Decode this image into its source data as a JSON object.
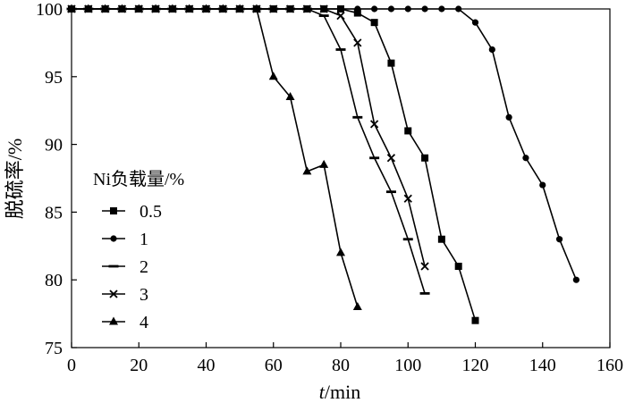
{
  "chart_data": {
    "type": "line",
    "xlabel_italic": "t",
    "xlabel_unit": "/min",
    "ylabel": "脱硫率/%",
    "xlim": [
      0,
      160
    ],
    "ylim": [
      75,
      100
    ],
    "xticks": [
      0,
      20,
      40,
      60,
      80,
      100,
      120,
      140,
      160
    ],
    "yticks": [
      75,
      80,
      85,
      90,
      95,
      100
    ],
    "grid": false,
    "legend_position": "left",
    "legend_title": "Ni负载量/%",
    "series": [
      {
        "name": "0.5",
        "marker": "square",
        "x": [
          0,
          5,
          10,
          15,
          20,
          25,
          30,
          35,
          40,
          45,
          50,
          55,
          60,
          65,
          70,
          75,
          80,
          85,
          90,
          95,
          100,
          105,
          110,
          115,
          120
        ],
        "y": [
          100,
          100,
          100,
          100,
          100,
          100,
          100,
          100,
          100,
          100,
          100,
          100,
          100,
          100,
          100,
          100,
          100,
          99.7,
          99,
          96,
          91,
          89,
          83,
          81,
          77
        ]
      },
      {
        "name": "1",
        "marker": "circle",
        "x": [
          0,
          5,
          10,
          15,
          20,
          25,
          30,
          35,
          40,
          45,
          50,
          55,
          60,
          65,
          70,
          75,
          80,
          85,
          90,
          95,
          100,
          105,
          110,
          115,
          120,
          125,
          130,
          135,
          140,
          145,
          150
        ],
        "y": [
          100,
          100,
          100,
          100,
          100,
          100,
          100,
          100,
          100,
          100,
          100,
          100,
          100,
          100,
          100,
          100,
          100,
          100,
          100,
          100,
          100,
          100,
          100,
          100,
          99,
          97,
          92,
          89,
          87,
          83,
          80
        ]
      },
      {
        "name": "2",
        "marker": "dash",
        "x": [
          0,
          5,
          10,
          15,
          20,
          25,
          30,
          35,
          40,
          45,
          50,
          55,
          60,
          65,
          70,
          75,
          80,
          85,
          90,
          95,
          100,
          105
        ],
        "y": [
          100,
          100,
          100,
          100,
          100,
          100,
          100,
          100,
          100,
          100,
          100,
          100,
          100,
          100,
          100,
          99.5,
          97,
          92,
          89,
          86.5,
          83,
          79
        ]
      },
      {
        "name": "3",
        "marker": "cross",
        "x": [
          0,
          5,
          10,
          15,
          20,
          25,
          30,
          35,
          40,
          45,
          50,
          55,
          60,
          65,
          70,
          75,
          80,
          85,
          90,
          95,
          100,
          105
        ],
        "y": [
          100,
          100,
          100,
          100,
          100,
          100,
          100,
          100,
          100,
          100,
          100,
          100,
          100,
          100,
          100,
          100,
          99.5,
          97.5,
          91.5,
          89,
          86,
          81
        ]
      },
      {
        "name": "4",
        "marker": "triangle",
        "x": [
          0,
          5,
          10,
          15,
          20,
          25,
          30,
          35,
          40,
          45,
          50,
          55,
          60,
          65,
          70,
          75,
          80,
          85
        ],
        "y": [
          100,
          100,
          100,
          100,
          100,
          100,
          100,
          100,
          100,
          100,
          100,
          100,
          95,
          93.5,
          88,
          88.5,
          82,
          78
        ]
      }
    ]
  }
}
